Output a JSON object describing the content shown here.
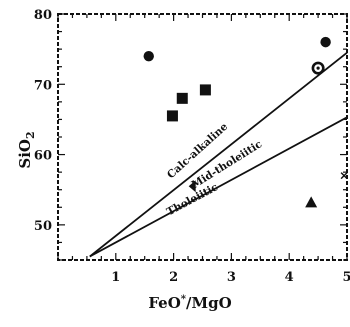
{
  "chart_data": {
    "type": "scatter",
    "xlabel": "FeO*/MgO",
    "ylabel": "SiO2",
    "xlim": [
      0,
      5
    ],
    "ylim": [
      45,
      80
    ],
    "xticks": [
      1,
      2,
      3,
      4,
      5
    ],
    "yticks": [
      50,
      60,
      70,
      80
    ],
    "xtick_labels": [
      "1",
      "2",
      "3",
      "4",
      "5"
    ],
    "ytick_labels": [
      "50",
      "60",
      "70",
      "80"
    ],
    "grid": false,
    "reference_lines": [
      {
        "name": "Calc-alkaline",
        "points": [
          [
            0.55,
            45.5
          ],
          [
            5.0,
            74.5
          ]
        ]
      },
      {
        "name": "Tholeiitic",
        "points": [
          [
            0.55,
            45.5
          ],
          [
            5.0,
            65.3
          ]
        ]
      }
    ],
    "region_labels": [
      {
        "text": "Calc-alkaline",
        "x": 2.45,
        "y": 60.2,
        "rotation": -42
      },
      {
        "text": "Mid-tholeiitic",
        "x": 2.95,
        "y": 58.2,
        "rotation": -32
      },
      {
        "text": "Tholeiitic",
        "x": 2.35,
        "y": 53.2,
        "rotation": -28
      }
    ],
    "points": [
      {
        "marker": "circle",
        "x": 1.57,
        "y": 74.0
      },
      {
        "marker": "circle",
        "x": 4.63,
        "y": 76.0
      },
      {
        "marker": "circle-dot",
        "x": 4.5,
        "y": 72.3
      },
      {
        "marker": "square",
        "x": 2.15,
        "y": 68.0
      },
      {
        "marker": "square",
        "x": 2.55,
        "y": 69.2
      },
      {
        "marker": "square",
        "x": 1.98,
        "y": 65.5
      },
      {
        "marker": "triangle-left",
        "x": 2.33,
        "y": 55.5
      },
      {
        "marker": "triangle",
        "x": 4.38,
        "y": 53.2
      },
      {
        "marker": "cross",
        "x": 4.95,
        "y": 57.0
      }
    ]
  }
}
